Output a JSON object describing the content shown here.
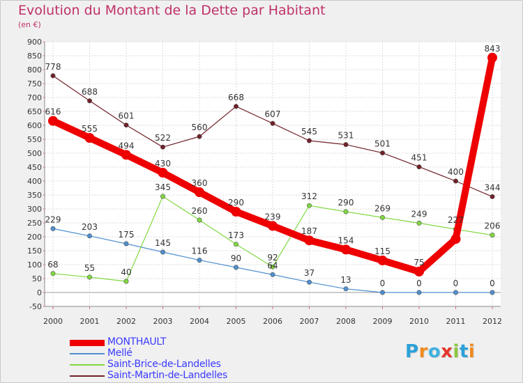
{
  "title": "Evolution du Montant de la Dette par Habitant",
  "subtitle": "(en €)",
  "logo": {
    "letters": [
      "P",
      "r",
      "o",
      "x",
      "i",
      "t",
      "i"
    ],
    "colors": [
      "#2aa1d8",
      "#f08a1c",
      "#3fb0e0",
      "#e6352c",
      "#8cc63f",
      "#2aa1d8",
      "#f08a1c"
    ]
  },
  "chart_data": {
    "type": "line",
    "title": "Evolution du Montant de la Dette par Habitant",
    "ylabel": "(en €)",
    "x": [
      "2000",
      "2001",
      "2002",
      "2003",
      "2004",
      "2005",
      "2006",
      "2007",
      "2008",
      "2009",
      "2010",
      "2011",
      "2012"
    ],
    "ylim": [
      -50,
      900
    ],
    "yticks": [
      "-50",
      "0",
      "50",
      "100",
      "150",
      "200",
      "250",
      "300",
      "350",
      "400",
      "450",
      "500",
      "550",
      "600",
      "650",
      "700",
      "750",
      "800",
      "850",
      "900"
    ],
    "grid": true,
    "legend_position": "bottom-left",
    "series": [
      {
        "name": "MONTHAULT",
        "color": "#ee0000",
        "values": [
          616,
          555,
          494,
          430,
          360,
          290,
          239,
          187,
          154,
          115,
          75,
          192,
          843
        ],
        "labels": [
          "616",
          "555",
          "494",
          "430",
          "360",
          "290",
          "239",
          "187",
          "154",
          "115",
          "75",
          "",
          "843"
        ]
      },
      {
        "name": "Mellé",
        "color": "#4f8fd0",
        "values": [
          229,
          203,
          175,
          145,
          116,
          90,
          64,
          37,
          13,
          0,
          0,
          0,
          0
        ],
        "labels": [
          "229",
          "203",
          "175",
          "145",
          "116",
          "90",
          "64",
          "37",
          "13",
          "0",
          "0",
          "0",
          "0"
        ]
      },
      {
        "name": "Saint-Brice-de-Landelles",
        "color": "#80d840",
        "values": [
          68,
          55,
          40,
          345,
          260,
          173,
          92,
          312,
          290,
          269,
          249,
          227,
          206
        ],
        "labels": [
          "68",
          "55",
          "40",
          "345",
          "260",
          "173",
          "92",
          "312",
          "290",
          "269",
          "249",
          "227",
          "206"
        ]
      },
      {
        "name": "Saint-Martin-de-Landelles",
        "color": "#702028",
        "values": [
          778,
          688,
          601,
          522,
          560,
          668,
          607,
          545,
          531,
          501,
          451,
          400,
          344
        ],
        "labels": [
          "778",
          "688",
          "601",
          "522",
          "560",
          "668",
          "607",
          "545",
          "531",
          "501",
          "451",
          "400",
          "344"
        ]
      }
    ]
  }
}
